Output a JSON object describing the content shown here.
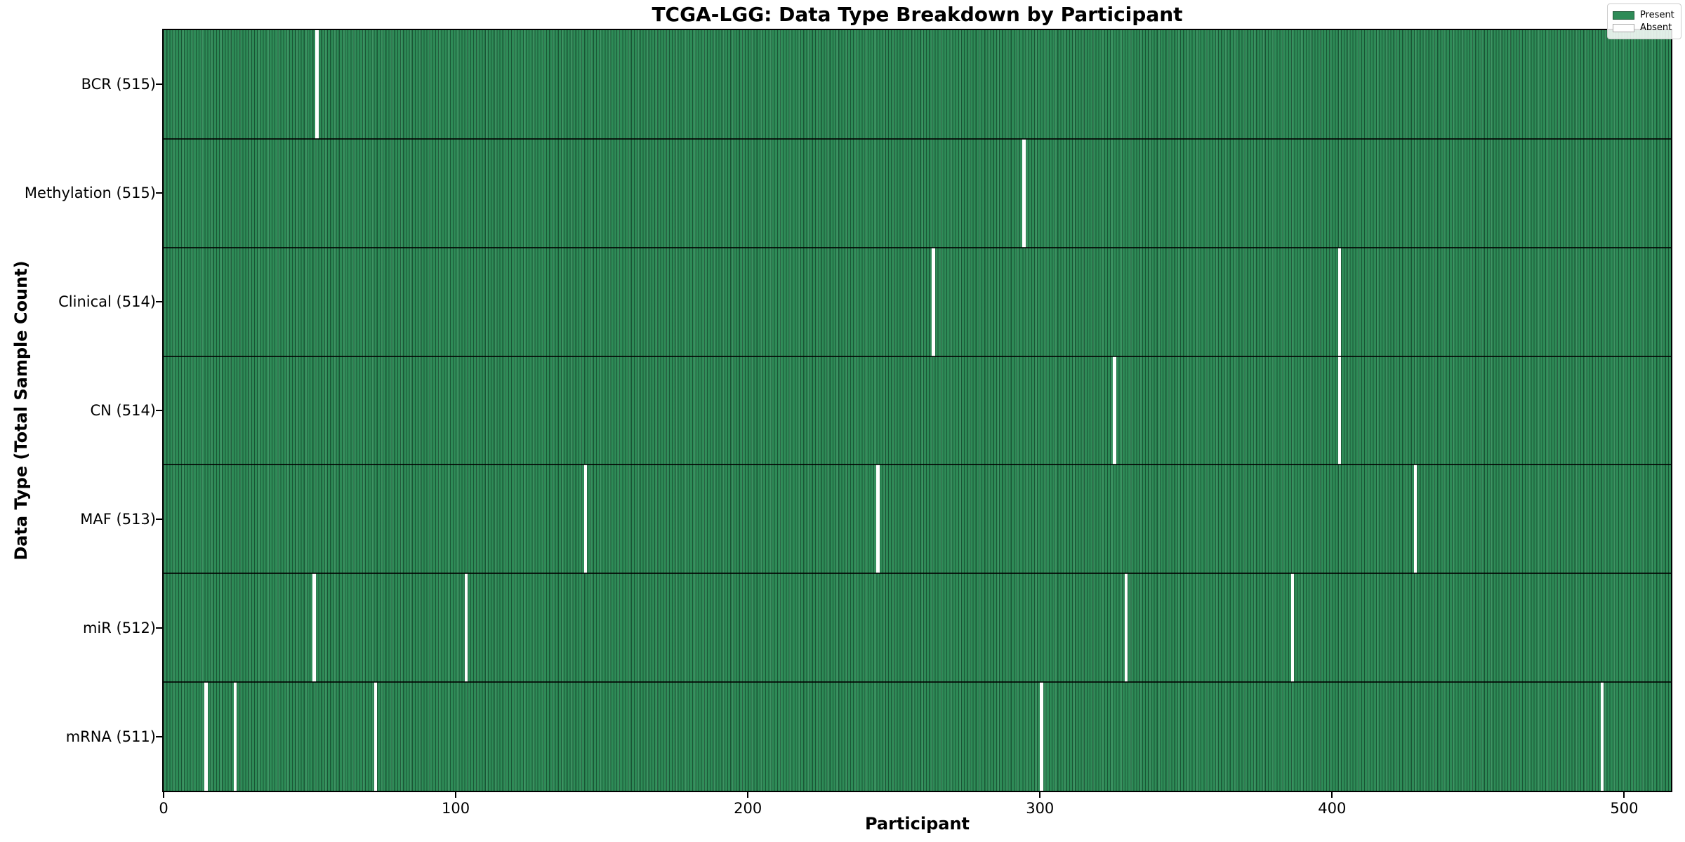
{
  "chart_data": {
    "type": "heatmap",
    "title": "TCGA-LGG: Data Type Breakdown by Participant",
    "xlabel": "Participant",
    "ylabel": "Data Type (Total Sample Count)",
    "x_ticks": [
      0,
      100,
      200,
      300,
      400,
      500
    ],
    "xlim": [
      0,
      516
    ],
    "total_participants": 516,
    "grid": false,
    "legend_position": "upper right",
    "colors": {
      "present": "#2e8b57",
      "absent": "#ffffff",
      "bar_edge": "rgba(10,40,25,0.55)"
    },
    "legend": [
      {
        "label": "Present",
        "color": "#2e8b57"
      },
      {
        "label": "Absent",
        "color": "#ffffff"
      }
    ],
    "rows": [
      {
        "label": "BCR (515)",
        "data_type": "BCR",
        "present_count": 515,
        "absent_participants": [
          52
        ]
      },
      {
        "label": "Methylation (515)",
        "data_type": "Methylation",
        "present_count": 515,
        "absent_participants": [
          294
        ]
      },
      {
        "label": "Clinical (514)",
        "data_type": "Clinical",
        "present_count": 514,
        "absent_participants": [
          263,
          402
        ]
      },
      {
        "label": "CN (514)",
        "data_type": "CN",
        "present_count": 514,
        "absent_participants": [
          325,
          402
        ]
      },
      {
        "label": "MAF (513)",
        "data_type": "MAF",
        "present_count": 513,
        "absent_participants": [
          144,
          244,
          428
        ]
      },
      {
        "label": "miR (512)",
        "data_type": "miR",
        "present_count": 512,
        "absent_participants": [
          51,
          103,
          329,
          386
        ]
      },
      {
        "label": "mRNA (511)",
        "data_type": "mRNA",
        "present_count": 511,
        "absent_participants": [
          14,
          24,
          72,
          300,
          492
        ]
      }
    ]
  }
}
